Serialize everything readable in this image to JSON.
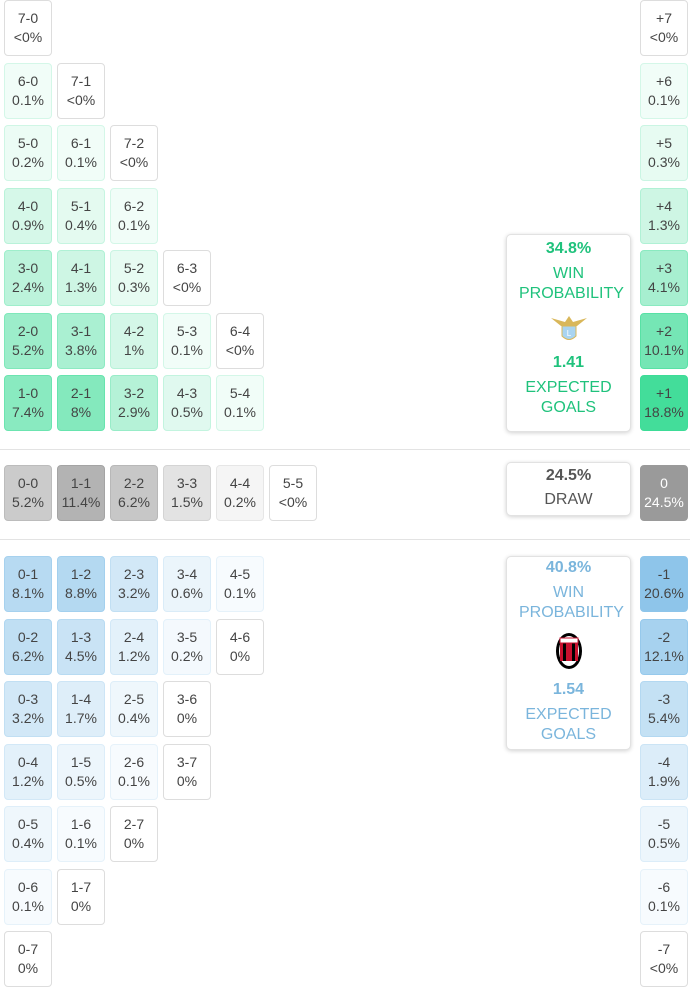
{
  "home": {
    "color": "#3ddc97",
    "text_color": "#1fc27c",
    "rows": [
      {
        "cells": [
          [
            "7-0",
            "<0%"
          ]
        ],
        "margin": [
          "+7",
          "<0%"
        ]
      },
      {
        "cells": [
          [
            "6-0",
            "0.1%"
          ],
          [
            "7-1",
            "<0%"
          ]
        ],
        "margin": [
          "+6",
          "0.1%"
        ]
      },
      {
        "cells": [
          [
            "5-0",
            "0.2%"
          ],
          [
            "6-1",
            "0.1%"
          ],
          [
            "7-2",
            "<0%"
          ]
        ],
        "margin": [
          "+5",
          "0.3%"
        ]
      },
      {
        "cells": [
          [
            "4-0",
            "0.9%"
          ],
          [
            "5-1",
            "0.4%"
          ],
          [
            "6-2",
            "0.1%"
          ]
        ],
        "margin": [
          "+4",
          "1.3%"
        ]
      },
      {
        "cells": [
          [
            "3-0",
            "2.4%"
          ],
          [
            "4-1",
            "1.3%"
          ],
          [
            "5-2",
            "0.3%"
          ],
          [
            "6-3",
            "<0%"
          ]
        ],
        "margin": [
          "+3",
          "4.1%"
        ]
      },
      {
        "cells": [
          [
            "2-0",
            "5.2%"
          ],
          [
            "3-1",
            "3.8%"
          ],
          [
            "4-2",
            "1%"
          ],
          [
            "5-3",
            "0.1%"
          ],
          [
            "6-4",
            "<0%"
          ]
        ],
        "margin": [
          "+2",
          "10.1%"
        ]
      },
      {
        "cells": [
          [
            "1-0",
            "7.4%"
          ],
          [
            "2-1",
            "8%"
          ],
          [
            "3-2",
            "2.9%"
          ],
          [
            "4-3",
            "0.5%"
          ],
          [
            "5-4",
            "0.1%"
          ]
        ],
        "margin": [
          "+1",
          "18.8%"
        ]
      }
    ],
    "summary": {
      "probability": "34.8%",
      "label": "WIN PROBABILITY",
      "xg": "1.41",
      "xg_label": "EXPECTED GOALS"
    }
  },
  "draw": {
    "color": "#9a9a9a",
    "text_color": "#555555",
    "rows": [
      {
        "cells": [
          [
            "0-0",
            "5.2%"
          ],
          [
            "1-1",
            "11.4%"
          ],
          [
            "2-2",
            "6.2%"
          ],
          [
            "3-3",
            "1.5%"
          ],
          [
            "4-4",
            "0.2%"
          ],
          [
            "5-5",
            "<0%"
          ]
        ],
        "margin": [
          "0",
          "24.5%"
        ]
      }
    ],
    "summary": {
      "probability": "24.5%",
      "label": "DRAW"
    }
  },
  "away": {
    "color": "#8ec5ea",
    "text_color": "#7ab5dc",
    "rows": [
      {
        "cells": [
          [
            "0-1",
            "8.1%"
          ],
          [
            "1-2",
            "8.8%"
          ],
          [
            "2-3",
            "3.2%"
          ],
          [
            "3-4",
            "0.6%"
          ],
          [
            "4-5",
            "0.1%"
          ]
        ],
        "margin": [
          "-1",
          "20.6%"
        ]
      },
      {
        "cells": [
          [
            "0-2",
            "6.2%"
          ],
          [
            "1-3",
            "4.5%"
          ],
          [
            "2-4",
            "1.2%"
          ],
          [
            "3-5",
            "0.2%"
          ],
          [
            "4-6",
            "0%"
          ]
        ],
        "margin": [
          "-2",
          "12.1%"
        ]
      },
      {
        "cells": [
          [
            "0-3",
            "3.2%"
          ],
          [
            "1-4",
            "1.7%"
          ],
          [
            "2-5",
            "0.4%"
          ],
          [
            "3-6",
            "0%"
          ]
        ],
        "margin": [
          "-3",
          "5.4%"
        ]
      },
      {
        "cells": [
          [
            "0-4",
            "1.2%"
          ],
          [
            "1-5",
            "0.5%"
          ],
          [
            "2-6",
            "0.1%"
          ],
          [
            "3-7",
            "0%"
          ]
        ],
        "margin": [
          "-4",
          "1.9%"
        ]
      },
      {
        "cells": [
          [
            "0-5",
            "0.4%"
          ],
          [
            "1-6",
            "0.1%"
          ],
          [
            "2-7",
            "0%"
          ]
        ],
        "margin": [
          "-5",
          "0.5%"
        ]
      },
      {
        "cells": [
          [
            "0-6",
            "0.1%"
          ],
          [
            "1-7",
            "0%"
          ]
        ],
        "margin": [
          "-6",
          "0.1%"
        ]
      },
      {
        "cells": [
          [
            "0-7",
            "0%"
          ]
        ],
        "margin": [
          "-7",
          "<0%"
        ]
      }
    ],
    "summary": {
      "probability": "40.8%",
      "label": "WIN PROBABILITY",
      "xg": "1.54",
      "xg_label": "EXPECTED GOALS"
    }
  }
}
